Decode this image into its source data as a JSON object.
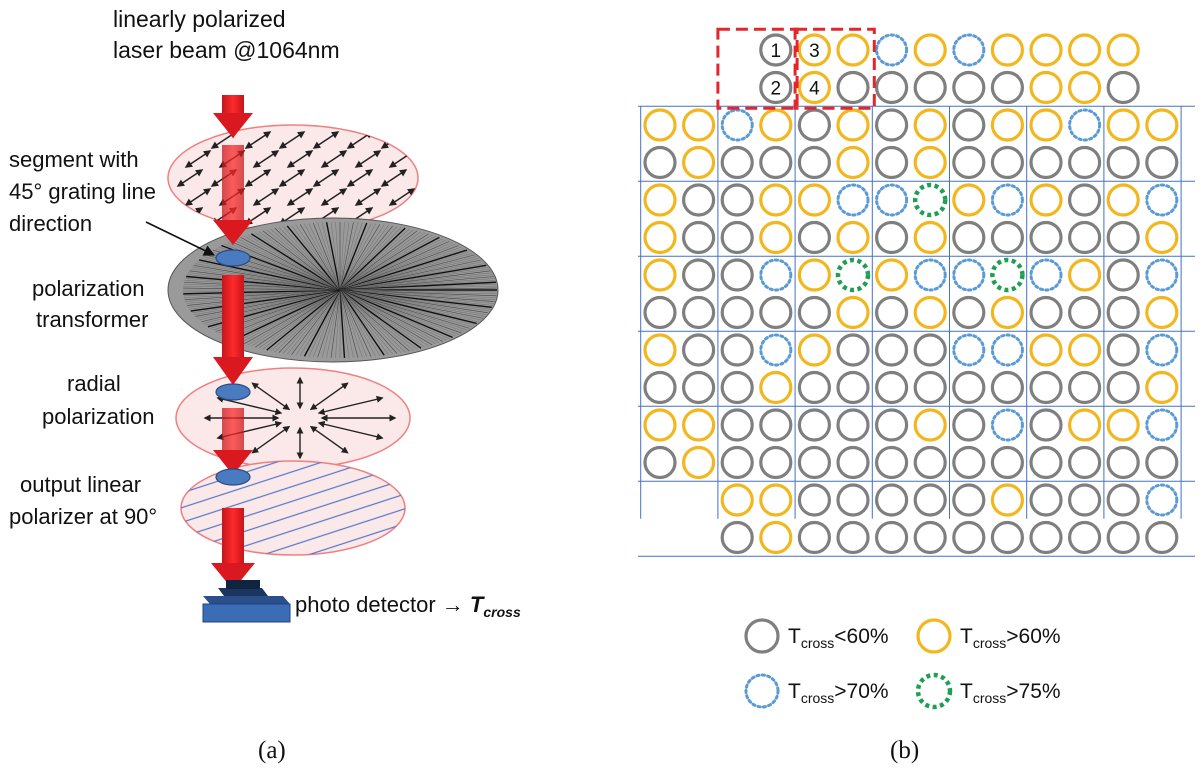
{
  "panel_a": {
    "beam_label_line1": "linearly polarized",
    "beam_label_line2": "laser beam @1064nm",
    "segment_label_line1": "segment with",
    "segment_label_line2": "45° grating line",
    "segment_label_line3": "direction",
    "transformer_label_line1": "polarization",
    "transformer_label_line2": "transformer",
    "radial_label_line1": "radial",
    "radial_label_line2": "polarization",
    "polarizer_label_line1": "output linear",
    "polarizer_label_line2": "polarizer at 90°",
    "detector_label": "photo detector",
    "detector_arrow": "→",
    "detector_symbol": "T",
    "detector_subscript": "cross",
    "caption": "(a)"
  },
  "panel_b": {
    "caption": "(b)",
    "cell_numbers": [
      "1",
      "2",
      "3",
      "4"
    ],
    "legend": [
      {
        "class": "lt60",
        "prefix": "T",
        "sub": "cross",
        "suffix": "<60%"
      },
      {
        "class": "gt60",
        "prefix": "T",
        "sub": "cross",
        "suffix": ">60%"
      },
      {
        "class": "gt70",
        "prefix": "T",
        "sub": "cross",
        "suffix": ">70%"
      },
      {
        "class": "gt75",
        "prefix": "T",
        "sub": "cross",
        "suffix": ">75%"
      }
    ],
    "colors": {
      "lt60": "#7f7f7f",
      "gt60": "#f2b71e",
      "gt70": "#5b9bd5",
      "gt75": "#1f9e54",
      "grid": "#4472c4",
      "highlight": "#e3262b"
    },
    "grid_rows": [
      {
        "start": 3,
        "cells": [
          "lt60",
          "gt60",
          "gt60",
          "gt70",
          "gt60",
          "gt70",
          "gt60",
          "gt60",
          "gt60",
          "gt60"
        ]
      },
      {
        "start": 3,
        "cells": [
          "lt60",
          "gt60",
          "lt60",
          "lt60",
          "lt60",
          "lt60",
          "lt60",
          "gt60",
          "gt60",
          "lt60"
        ]
      },
      {
        "start": 0,
        "cells": [
          "gt60",
          "gt60",
          "gt70",
          "gt60",
          "lt60",
          "gt60",
          "lt60",
          "gt60",
          "lt60",
          "gt60",
          "gt60",
          "gt70",
          "gt60",
          "gt60"
        ]
      },
      {
        "start": 0,
        "cells": [
          "lt60",
          "gt60",
          "lt60",
          "lt60",
          "lt60",
          "gt60",
          "lt60",
          "gt60",
          "lt60",
          "lt60",
          "lt60",
          "lt60",
          "lt60",
          "lt60"
        ]
      },
      {
        "start": 0,
        "cells": [
          "gt60",
          "lt60",
          "lt60",
          "gt60",
          "gt60",
          "gt70",
          "gt70",
          "gt75",
          "gt60",
          "gt70",
          "gt60",
          "lt60",
          "gt60",
          "gt70"
        ]
      },
      {
        "start": 0,
        "cells": [
          "gt60",
          "lt60",
          "lt60",
          "gt60",
          "lt60",
          "gt60",
          "lt60",
          "gt60",
          "lt60",
          "lt60",
          "lt60",
          "lt60",
          "lt60",
          "gt60"
        ]
      },
      {
        "start": 0,
        "cells": [
          "gt60",
          "lt60",
          "lt60",
          "gt70",
          "gt60",
          "gt75",
          "gt60",
          "gt70",
          "gt70",
          "gt75",
          "gt70",
          "gt60",
          "lt60",
          "gt70"
        ]
      },
      {
        "start": 0,
        "cells": [
          "lt60",
          "lt60",
          "lt60",
          "lt60",
          "lt60",
          "gt60",
          "lt60",
          "gt60",
          "lt60",
          "gt60",
          "lt60",
          "lt60",
          "lt60",
          "gt60"
        ]
      },
      {
        "start": 0,
        "cells": [
          "gt60",
          "lt60",
          "lt60",
          "gt70",
          "gt60",
          "lt60",
          "lt60",
          "lt60",
          "gt70",
          "gt70",
          "gt60",
          "gt60",
          "lt60",
          "gt70"
        ]
      },
      {
        "start": 0,
        "cells": [
          "lt60",
          "lt60",
          "lt60",
          "gt60",
          "lt60",
          "lt60",
          "lt60",
          "lt60",
          "lt60",
          "lt60",
          "lt60",
          "lt60",
          "lt60",
          "gt60"
        ]
      },
      {
        "start": 0,
        "cells": [
          "gt60",
          "gt60",
          "lt60",
          "lt60",
          "lt60",
          "lt60",
          "lt60",
          "gt60",
          "lt60",
          "gt70",
          "lt60",
          "gt60",
          "gt60",
          "gt70"
        ]
      },
      {
        "start": 0,
        "cells": [
          "lt60",
          "gt60",
          "lt60",
          "lt60",
          "lt60",
          "lt60",
          "lt60",
          "lt60",
          "lt60",
          "lt60",
          "lt60",
          "lt60",
          "lt60",
          "lt60"
        ]
      },
      {
        "start": 2,
        "cells": [
          "gt60",
          "gt60",
          "lt60",
          "lt60",
          "lt60",
          "lt60",
          "lt60",
          "gt60",
          "lt60",
          "lt60",
          "lt60",
          "gt70"
        ]
      },
      {
        "start": 2,
        "cells": [
          "lt60",
          "gt60",
          "lt60",
          "lt60",
          "lt60",
          "lt60",
          "lt60",
          "lt60",
          "lt60",
          "lt60",
          "lt60",
          "lt60"
        ]
      }
    ]
  }
}
